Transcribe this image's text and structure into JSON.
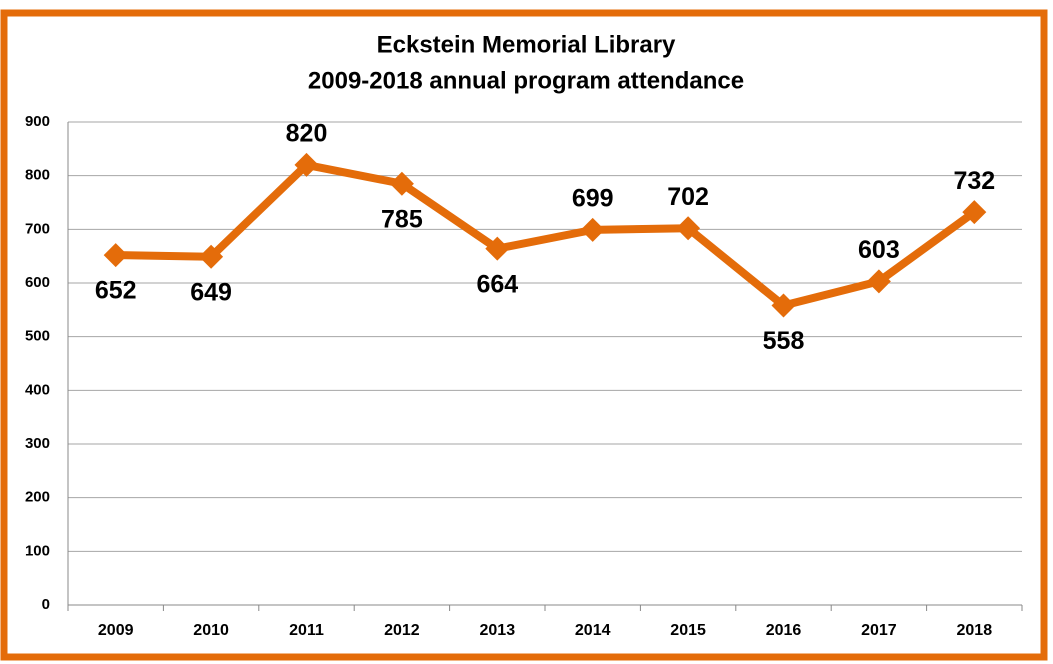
{
  "chart_data": {
    "type": "line",
    "title": [
      "Eckstein Memorial Library",
      "2009-2018 annual program attendance"
    ],
    "categories": [
      "2009",
      "2010",
      "2011",
      "2012",
      "2013",
      "2014",
      "2015",
      "2016",
      "2017",
      "2018"
    ],
    "series": [
      {
        "name": "Attendance",
        "color": "#e46c0a",
        "values": [
          652,
          649,
          820,
          785,
          664,
          699,
          702,
          558,
          603,
          732
        ]
      }
    ],
    "ylim": [
      0,
      900
    ],
    "yticks": [
      0,
      100,
      200,
      300,
      400,
      500,
      600,
      700,
      800,
      900
    ],
    "grid": true
  }
}
